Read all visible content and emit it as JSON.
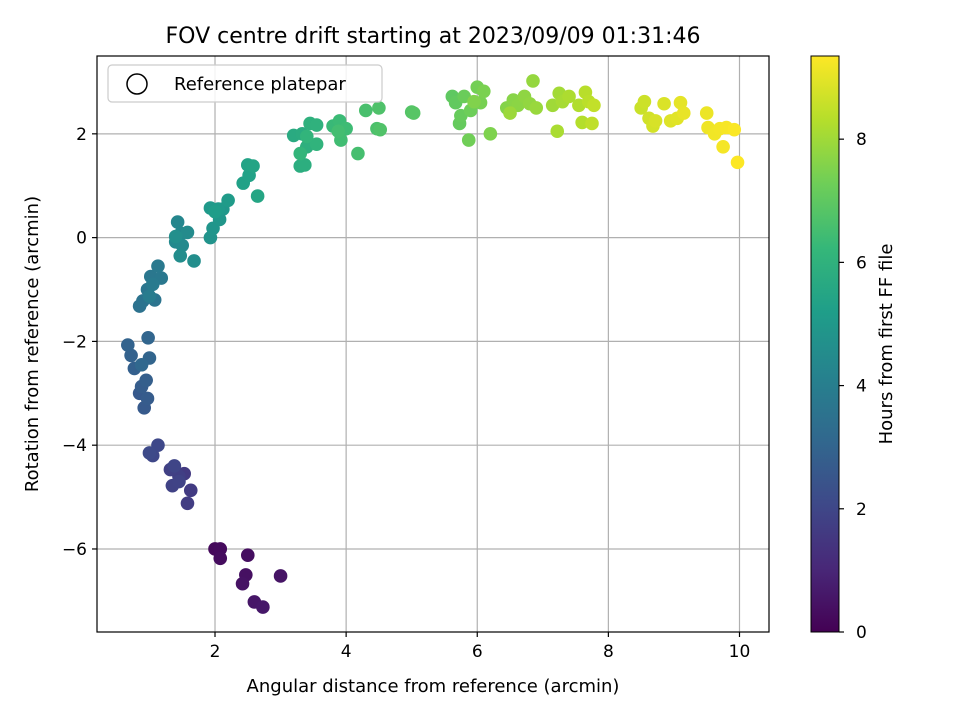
{
  "chart_data": {
    "type": "scatter",
    "title": "FOV centre drift starting at 2023/09/09 01:31:46",
    "xlabel": "Angular distance from reference (arcmin)",
    "ylabel": "Rotation from reference (arcmin)",
    "colorbar_label": "Hours from first FF file",
    "xlim": [
      0.2,
      10.45
    ],
    "ylim": [
      -7.6,
      3.5
    ],
    "clim": [
      0,
      9.35
    ],
    "x_ticks": [
      2,
      4,
      6,
      8,
      10
    ],
    "y_ticks": [
      -6,
      -4,
      -2,
      0,
      2
    ],
    "c_ticks": [
      0,
      2,
      4,
      6,
      8
    ],
    "grid": true,
    "legend": {
      "location": "upper-left",
      "entries": [
        {
          "label": "Reference platepar",
          "marker": "open-circle"
        }
      ]
    },
    "colormap": [
      "#440154",
      "#482878",
      "#3e4989",
      "#31688e",
      "#26828e",
      "#1f9e89",
      "#35b779",
      "#6ece58",
      "#b5de2b",
      "#fde725"
    ],
    "points": [
      {
        "x": 2.0,
        "y": -6.0,
        "c": 0.2
      },
      {
        "x": 2.08,
        "y": -6.0,
        "c": 0.25
      },
      {
        "x": 2.08,
        "y": -6.18,
        "c": 0.3
      },
      {
        "x": 2.5,
        "y": -6.12,
        "c": 0.35
      },
      {
        "x": 2.47,
        "y": -6.5,
        "c": 0.4
      },
      {
        "x": 2.42,
        "y": -6.67,
        "c": 0.45
      },
      {
        "x": 3.0,
        "y": -6.52,
        "c": 0.5
      },
      {
        "x": 2.6,
        "y": -7.02,
        "c": 0.55
      },
      {
        "x": 2.73,
        "y": -7.12,
        "c": 0.6
      },
      {
        "x": 1.53,
        "y": -4.55,
        "c": 1.6
      },
      {
        "x": 1.63,
        "y": -4.87,
        "c": 1.65
      },
      {
        "x": 1.58,
        "y": -5.12,
        "c": 1.7
      },
      {
        "x": 1.45,
        "y": -4.6,
        "c": 1.75
      },
      {
        "x": 1.32,
        "y": -4.47,
        "c": 1.8
      },
      {
        "x": 1.35,
        "y": -4.78,
        "c": 1.85
      },
      {
        "x": 1.45,
        "y": -4.7,
        "c": 1.9
      },
      {
        "x": 1.38,
        "y": -4.4,
        "c": 1.95
      },
      {
        "x": 1.05,
        "y": -4.2,
        "c": 2.0
      },
      {
        "x": 1.13,
        "y": -4.0,
        "c": 2.05
      },
      {
        "x": 1.0,
        "y": -4.15,
        "c": 2.1
      },
      {
        "x": 0.85,
        "y": -3.0,
        "c": 2.6
      },
      {
        "x": 0.92,
        "y": -3.28,
        "c": 2.65
      },
      {
        "x": 0.97,
        "y": -3.1,
        "c": 2.7
      },
      {
        "x": 0.88,
        "y": -2.87,
        "c": 2.75
      },
      {
        "x": 0.95,
        "y": -2.75,
        "c": 2.8
      },
      {
        "x": 0.77,
        "y": -2.52,
        "c": 2.85
      },
      {
        "x": 0.72,
        "y": -2.27,
        "c": 2.9
      },
      {
        "x": 0.67,
        "y": -2.07,
        "c": 2.95
      },
      {
        "x": 1.0,
        "y": -2.32,
        "c": 3.0
      },
      {
        "x": 0.98,
        "y": -1.93,
        "c": 3.05
      },
      {
        "x": 0.88,
        "y": -2.45,
        "c": 3.1
      },
      {
        "x": 0.85,
        "y": -1.32,
        "c": 3.5
      },
      {
        "x": 0.9,
        "y": -1.22,
        "c": 3.55
      },
      {
        "x": 1.08,
        "y": -1.2,
        "c": 3.6
      },
      {
        "x": 0.97,
        "y": -1.0,
        "c": 3.65
      },
      {
        "x": 1.02,
        "y": -0.75,
        "c": 3.7
      },
      {
        "x": 1.18,
        "y": -0.78,
        "c": 3.75
      },
      {
        "x": 1.13,
        "y": -0.55,
        "c": 3.8
      },
      {
        "x": 1.05,
        "y": -0.9,
        "c": 3.85
      },
      {
        "x": 1.0,
        "y": -1.13,
        "c": 3.9
      },
      {
        "x": 1.43,
        "y": 0.3,
        "c": 4.3
      },
      {
        "x": 1.48,
        "y": 0.08,
        "c": 4.35
      },
      {
        "x": 1.4,
        "y": -0.08,
        "c": 4.4
      },
      {
        "x": 1.5,
        "y": -0.15,
        "c": 4.45
      },
      {
        "x": 1.58,
        "y": 0.1,
        "c": 4.5
      },
      {
        "x": 1.47,
        "y": -0.35,
        "c": 4.55
      },
      {
        "x": 1.68,
        "y": -0.45,
        "c": 4.6
      },
      {
        "x": 1.4,
        "y": 0.02,
        "c": 4.65
      },
      {
        "x": 1.93,
        "y": 0.0,
        "c": 4.8
      },
      {
        "x": 1.97,
        "y": 0.18,
        "c": 4.85
      },
      {
        "x": 2.07,
        "y": 0.35,
        "c": 4.9
      },
      {
        "x": 2.12,
        "y": 0.55,
        "c": 4.95
      },
      {
        "x": 1.93,
        "y": 0.57,
        "c": 5.0
      },
      {
        "x": 2.05,
        "y": 0.55,
        "c": 5.05
      },
      {
        "x": 2.2,
        "y": 0.72,
        "c": 5.1
      },
      {
        "x": 2.0,
        "y": 0.5,
        "c": 5.15
      },
      {
        "x": 2.43,
        "y": 1.05,
        "c": 5.3
      },
      {
        "x": 2.52,
        "y": 1.2,
        "c": 5.35
      },
      {
        "x": 2.5,
        "y": 1.4,
        "c": 5.4
      },
      {
        "x": 2.58,
        "y": 1.38,
        "c": 5.45
      },
      {
        "x": 2.65,
        "y": 0.8,
        "c": 5.5
      },
      {
        "x": 3.2,
        "y": 1.97,
        "c": 5.7
      },
      {
        "x": 3.33,
        "y": 2.0,
        "c": 5.75
      },
      {
        "x": 3.3,
        "y": 1.38,
        "c": 5.8
      },
      {
        "x": 3.37,
        "y": 1.4,
        "c": 5.85
      },
      {
        "x": 3.4,
        "y": 1.75,
        "c": 5.9
      },
      {
        "x": 3.45,
        "y": 2.2,
        "c": 5.95
      },
      {
        "x": 3.55,
        "y": 2.17,
        "c": 6.0
      },
      {
        "x": 3.55,
        "y": 1.8,
        "c": 6.05
      },
      {
        "x": 3.4,
        "y": 1.95,
        "c": 6.1
      },
      {
        "x": 3.3,
        "y": 1.62,
        "c": 6.15
      },
      {
        "x": 3.8,
        "y": 2.15,
        "c": 6.3
      },
      {
        "x": 3.9,
        "y": 2.25,
        "c": 6.35
      },
      {
        "x": 4.0,
        "y": 2.1,
        "c": 6.4
      },
      {
        "x": 3.92,
        "y": 1.88,
        "c": 6.45
      },
      {
        "x": 3.88,
        "y": 2.05,
        "c": 6.5
      },
      {
        "x": 4.18,
        "y": 1.62,
        "c": 6.55
      },
      {
        "x": 4.3,
        "y": 2.45,
        "c": 6.6
      },
      {
        "x": 4.47,
        "y": 2.1,
        "c": 6.65
      },
      {
        "x": 4.5,
        "y": 2.5,
        "c": 6.7
      },
      {
        "x": 4.52,
        "y": 2.08,
        "c": 6.75
      },
      {
        "x": 5.0,
        "y": 2.42,
        "c": 6.8
      },
      {
        "x": 5.03,
        "y": 2.4,
        "c": 6.85
      },
      {
        "x": 5.62,
        "y": 2.72,
        "c": 7.0
      },
      {
        "x": 5.67,
        "y": 2.6,
        "c": 7.05
      },
      {
        "x": 5.73,
        "y": 2.2,
        "c": 7.1
      },
      {
        "x": 5.75,
        "y": 2.35,
        "c": 7.15
      },
      {
        "x": 5.8,
        "y": 2.72,
        "c": 7.2
      },
      {
        "x": 5.9,
        "y": 2.45,
        "c": 7.25
      },
      {
        "x": 5.87,
        "y": 1.88,
        "c": 7.3
      },
      {
        "x": 6.0,
        "y": 2.9,
        "c": 7.35
      },
      {
        "x": 6.05,
        "y": 2.6,
        "c": 7.4
      },
      {
        "x": 6.1,
        "y": 2.82,
        "c": 7.45
      },
      {
        "x": 6.2,
        "y": 2.0,
        "c": 7.5
      },
      {
        "x": 5.95,
        "y": 2.62,
        "c": 7.55
      },
      {
        "x": 6.45,
        "y": 2.5,
        "c": 7.6
      },
      {
        "x": 6.55,
        "y": 2.65,
        "c": 7.65
      },
      {
        "x": 6.62,
        "y": 2.55,
        "c": 7.7
      },
      {
        "x": 6.72,
        "y": 2.72,
        "c": 7.75
      },
      {
        "x": 6.8,
        "y": 2.58,
        "c": 7.8
      },
      {
        "x": 6.85,
        "y": 3.02,
        "c": 7.85
      },
      {
        "x": 6.9,
        "y": 2.5,
        "c": 7.9
      },
      {
        "x": 6.5,
        "y": 2.4,
        "c": 7.95
      },
      {
        "x": 7.15,
        "y": 2.55,
        "c": 8.0
      },
      {
        "x": 7.25,
        "y": 2.78,
        "c": 8.05
      },
      {
        "x": 7.3,
        "y": 2.62,
        "c": 8.1
      },
      {
        "x": 7.22,
        "y": 2.05,
        "c": 8.15
      },
      {
        "x": 7.4,
        "y": 2.72,
        "c": 8.2
      },
      {
        "x": 7.55,
        "y": 2.55,
        "c": 8.25
      },
      {
        "x": 7.6,
        "y": 2.22,
        "c": 8.3
      },
      {
        "x": 7.65,
        "y": 2.8,
        "c": 8.35
      },
      {
        "x": 7.7,
        "y": 2.62,
        "c": 8.4
      },
      {
        "x": 7.75,
        "y": 2.2,
        "c": 8.45
      },
      {
        "x": 7.78,
        "y": 2.55,
        "c": 8.5
      },
      {
        "x": 8.5,
        "y": 2.5,
        "c": 8.6
      },
      {
        "x": 8.55,
        "y": 2.62,
        "c": 8.65
      },
      {
        "x": 8.62,
        "y": 2.3,
        "c": 8.7
      },
      {
        "x": 8.68,
        "y": 2.15,
        "c": 8.75
      },
      {
        "x": 8.72,
        "y": 2.25,
        "c": 8.8
      },
      {
        "x": 8.85,
        "y": 2.58,
        "c": 8.85
      },
      {
        "x": 8.95,
        "y": 2.25,
        "c": 8.9
      },
      {
        "x": 9.05,
        "y": 2.3,
        "c": 8.95
      },
      {
        "x": 9.1,
        "y": 2.6,
        "c": 9.0
      },
      {
        "x": 9.15,
        "y": 2.4,
        "c": 9.05
      },
      {
        "x": 9.5,
        "y": 2.4,
        "c": 9.1
      },
      {
        "x": 9.52,
        "y": 2.12,
        "c": 9.15
      },
      {
        "x": 9.62,
        "y": 2.0,
        "c": 9.18
      },
      {
        "x": 9.7,
        "y": 2.1,
        "c": 9.21
      },
      {
        "x": 9.75,
        "y": 1.75,
        "c": 9.24
      },
      {
        "x": 9.8,
        "y": 2.12,
        "c": 9.27
      },
      {
        "x": 9.92,
        "y": 2.08,
        "c": 9.3
      },
      {
        "x": 9.97,
        "y": 1.45,
        "c": 9.33
      }
    ]
  }
}
